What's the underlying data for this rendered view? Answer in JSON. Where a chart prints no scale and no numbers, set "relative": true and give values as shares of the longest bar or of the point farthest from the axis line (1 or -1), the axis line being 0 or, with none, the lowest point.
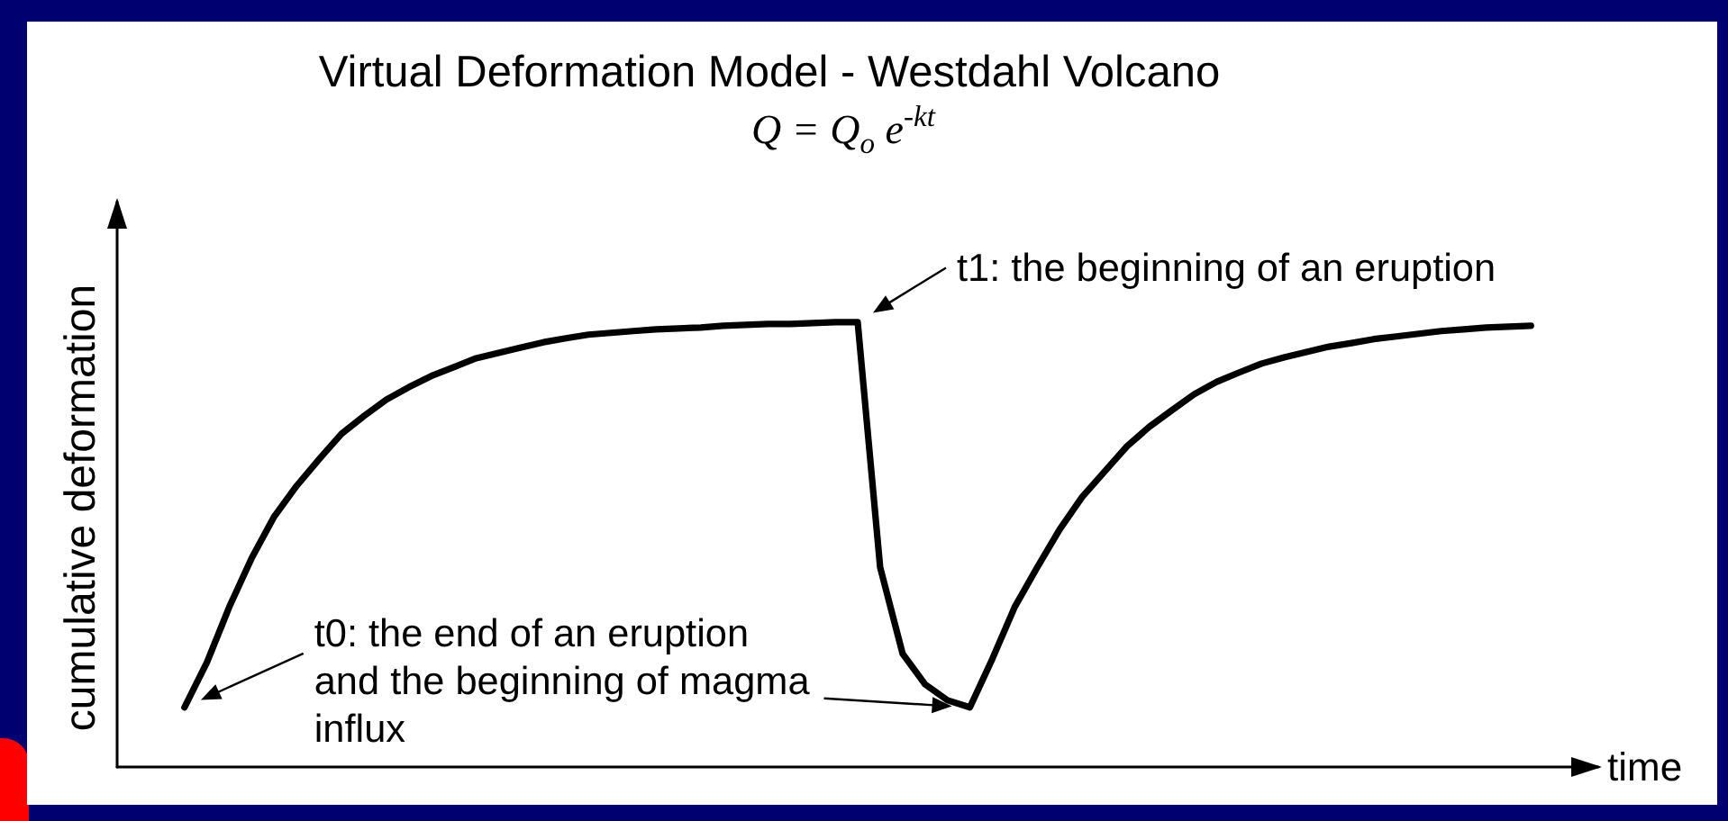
{
  "chart_data": {
    "type": "line",
    "title": "Virtual Deformation Model - Westdahl Volcano",
    "subtitle": "Q = Q$_{o}$ e$^{-kt}$",
    "xlabel": "time",
    "ylabel": "cumulative deformation",
    "relative": true,
    "categories": [
      null,
      null,
      null,
      null,
      null,
      null,
      null,
      null,
      null,
      null,
      null,
      null,
      null,
      null,
      null,
      null,
      null,
      null,
      null,
      null,
      null,
      null,
      null,
      null,
      null,
      null,
      null,
      null,
      null,
      null,
      null,
      null,
      null,
      null,
      null,
      null,
      null,
      null,
      null,
      null,
      null,
      null,
      null,
      null,
      null,
      null,
      null,
      null,
      null,
      null,
      null,
      null,
      null,
      null,
      null,
      null,
      null,
      null,
      null,
      null,
      null,
      null,
      null,
      null,
      null,
      null,
      null
    ],
    "series": [
      {
        "color": "#000000",
        "values": [
          null,
          null,
          null,
          0.134,
          0.235,
          0.36,
          0.47,
          0.563,
          0.632,
          0.692,
          0.749,
          0.789,
          0.826,
          0.854,
          0.879,
          0.899,
          0.919,
          0.931,
          0.943,
          0.955,
          0.964,
          0.972,
          0.976,
          0.98,
          0.984,
          0.986,
          0.988,
          0.992,
          0.994,
          0.996,
          0.996,
          0.998,
          1,
          1,
          0.449,
          0.255,
          0.186,
          0.15,
          0.134,
          0.243,
          0.36,
          0.449,
          0.534,
          0.607,
          0.664,
          0.721,
          0.765,
          0.802,
          0.838,
          0.866,
          0.887,
          0.907,
          0.921,
          0.933,
          0.945,
          0.953,
          0.962,
          0.968,
          0.974,
          0.98,
          0.984,
          0.988,
          0.99,
          0.992,
          null,
          null,
          null
        ]
      }
    ],
    "marker": "none",
    "line_style": "solid",
    "annotations": [
      "t1: the beginning of an eruption",
      "t0: the end of an eruption\nand the beginning of magma\ninflux"
    ]
  }
}
